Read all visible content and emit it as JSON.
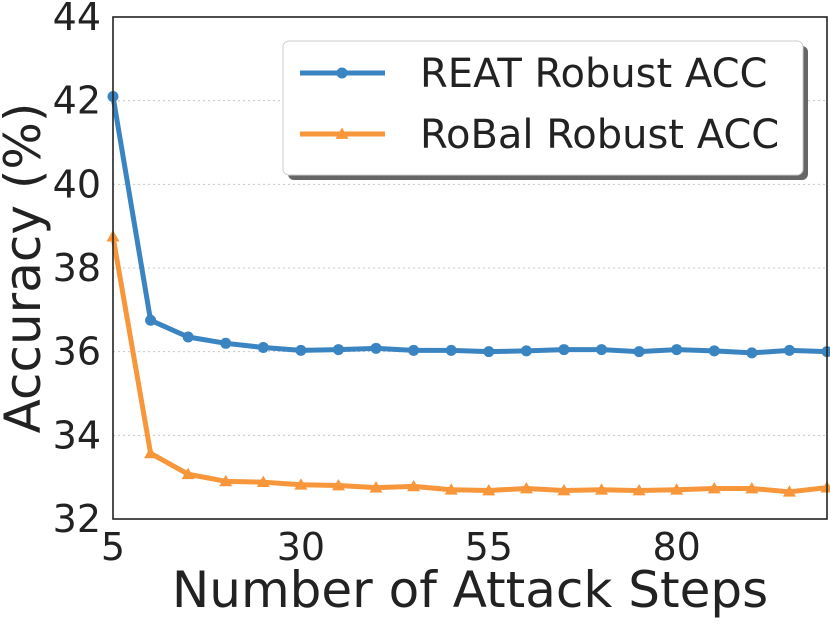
{
  "chart_data": {
    "type": "line",
    "xlabel": "Number of Attack Steps",
    "ylabel": "Accuracy (%)",
    "xlim": [
      5,
      100
    ],
    "ylim": [
      32,
      44
    ],
    "x_ticks": [
      5,
      30,
      55,
      80
    ],
    "y_ticks": [
      32,
      34,
      36,
      38,
      40,
      42,
      44
    ],
    "grid": "horizontal dotted",
    "legend_position": "top-right",
    "x": [
      5,
      10,
      15,
      20,
      25,
      30,
      35,
      40,
      45,
      50,
      55,
      60,
      65,
      70,
      75,
      80,
      85,
      90,
      95,
      100
    ],
    "series": [
      {
        "name": "REAT Robust ACC",
        "color": "#3a84c1",
        "marker": "circle",
        "values": [
          42.1,
          36.75,
          36.35,
          36.2,
          36.1,
          36.03,
          36.05,
          36.08,
          36.03,
          36.03,
          36.0,
          36.02,
          36.05,
          36.05,
          36.0,
          36.05,
          36.02,
          35.97,
          36.03,
          36.0
        ]
      },
      {
        "name": "RoBal Robust ACC",
        "color": "#f7963a",
        "marker": "triangle",
        "values": [
          38.75,
          33.57,
          33.07,
          32.9,
          32.88,
          32.82,
          32.8,
          32.75,
          32.78,
          32.7,
          32.68,
          32.73,
          32.68,
          32.7,
          32.68,
          32.7,
          32.73,
          32.73,
          32.65,
          32.75
        ]
      }
    ]
  }
}
